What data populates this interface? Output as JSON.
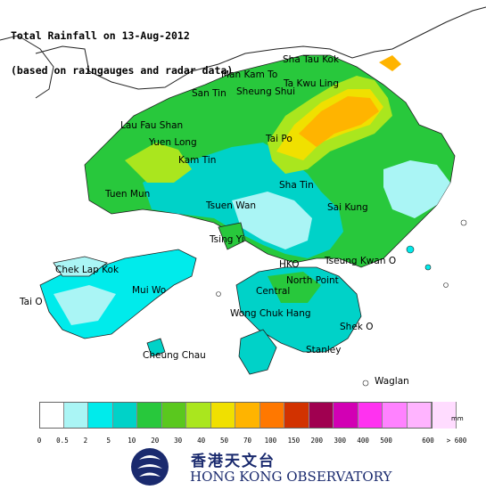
{
  "title": {
    "line1": "Total Rainfall on 13-Aug-2012",
    "line2": "(based on raingauges and radar data)"
  },
  "places": [
    {
      "id": "sha-tau-kok",
      "label": "Sha Tau Kok"
    },
    {
      "id": "man-kam-to",
      "label": "Man Kam To"
    },
    {
      "id": "ta-kwu-ling",
      "label": "Ta Kwu Ling"
    },
    {
      "id": "sheung-shui",
      "label": "Sheung Shui"
    },
    {
      "id": "san-tin",
      "label": "San Tin"
    },
    {
      "id": "lau-fau-shan",
      "label": "Lau Fau Shan"
    },
    {
      "id": "yuen-long",
      "label": "Yuen Long"
    },
    {
      "id": "kam-tin",
      "label": "Kam Tin"
    },
    {
      "id": "tai-po",
      "label": "Tai Po"
    },
    {
      "id": "tuen-mun",
      "label": "Tuen Mun"
    },
    {
      "id": "sha-tin",
      "label": "Sha Tin"
    },
    {
      "id": "tsuen-wan",
      "label": "Tsuen Wan"
    },
    {
      "id": "sai-kung",
      "label": "Sai Kung"
    },
    {
      "id": "tsing-yi",
      "label": "Tsing Yi"
    },
    {
      "id": "chek-lap-kok",
      "label": "Chek Lap Kok"
    },
    {
      "id": "hko",
      "label": "HKO"
    },
    {
      "id": "tseung-kwan-o",
      "label": "Tseung Kwan O"
    },
    {
      "id": "mui-wo",
      "label": "Mui Wo"
    },
    {
      "id": "north-point",
      "label": "North Point"
    },
    {
      "id": "central",
      "label": "Central"
    },
    {
      "id": "tai-o",
      "label": "Tai O"
    },
    {
      "id": "wong-chuk-hang",
      "label": "Wong Chuk Hang"
    },
    {
      "id": "shek-o",
      "label": "Shek O"
    },
    {
      "id": "stanley",
      "label": "Stanley"
    },
    {
      "id": "cheung-chau",
      "label": "Cheung Chau"
    },
    {
      "id": "waglan",
      "label": "Waglan"
    }
  ],
  "legend": {
    "unit": "mm",
    "colors": [
      "#ffffff",
      "#aaf5f5",
      "#00ebeb",
      "#00d2c8",
      "#28c83c",
      "#5ac81e",
      "#aae61e",
      "#f0e000",
      "#ffb400",
      "#ff7800",
      "#d23200",
      "#a00050",
      "#d200b4",
      "#ff32f0",
      "#ff82ff",
      "#ffb4ff",
      "#ffdcff"
    ],
    "ticks": [
      "0",
      "0.5",
      "2",
      "5",
      "10",
      "20",
      "30",
      "40",
      "50",
      "70",
      "100",
      "150",
      "200",
      "300",
      "400",
      "500",
      "600",
      "> 600"
    ]
  },
  "organization": {
    "name_cn": "香港天文台",
    "name_en": "HONG KONG OBSERVATORY",
    "logo_icon": "hko-logo-icon"
  }
}
